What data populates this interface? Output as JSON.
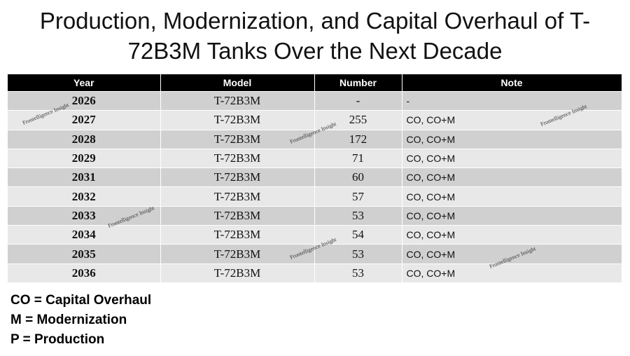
{
  "header": {
    "title": "Production, Modernization, and Capital Overhaul of T-72B3M Tanks Over the Next Decade"
  },
  "table": {
    "columns": [
      "Year",
      "Model",
      "Number",
      "Note"
    ],
    "rows": [
      [
        2026,
        "T-72B3M",
        "-",
        "-"
      ],
      [
        2027,
        "T-72B3M",
        255,
        "CO, CO+M"
      ],
      [
        2028,
        "T-72B3M",
        172,
        "CO, CO+M"
      ],
      [
        2029,
        "T-72B3M",
        71,
        "CO, CO+M"
      ],
      [
        2031,
        "T-72B3M",
        60,
        "CO, CO+M"
      ],
      [
        2032,
        "T-72B3M",
        57,
        "CO, CO+M"
      ],
      [
        2033,
        "T-72B3M",
        53,
        "CO, CO+M"
      ],
      [
        2034,
        "T-72B3M",
        54,
        "CO, CO+M"
      ],
      [
        2035,
        "T-72B3M",
        53,
        "CO, CO+M"
      ],
      [
        2036,
        "T-72B3M",
        53,
        "CO, CO+M"
      ]
    ]
  },
  "watermark": "Frontelligence Insight",
  "legend": [
    "CO = Capital Overhaul",
    "M = Modernization",
    "P = Production"
  ]
}
